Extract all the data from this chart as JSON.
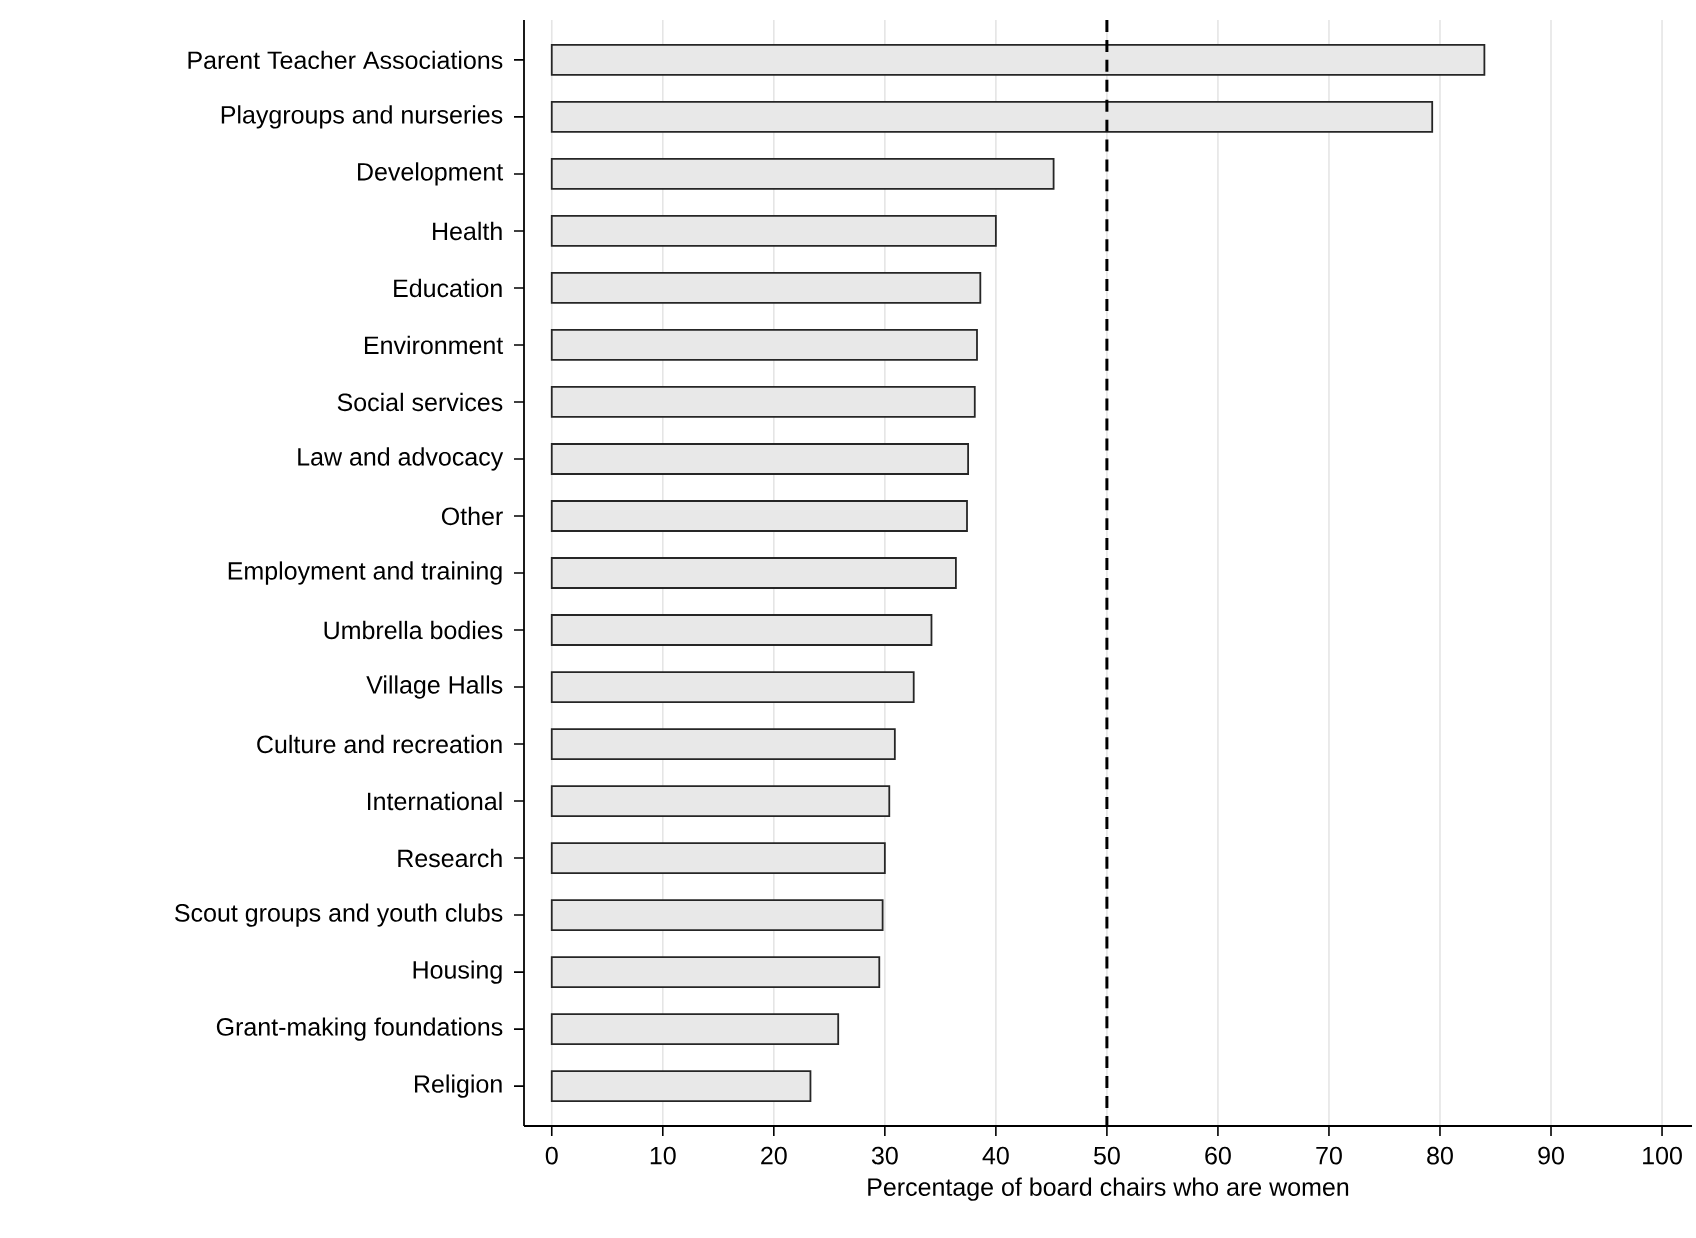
{
  "chart_data": {
    "type": "bar",
    "orientation": "horizontal",
    "categories": [
      "Parent Teacher Associations",
      "Playgroups and nurseries",
      "Development",
      "Health",
      "Education",
      "Environment",
      "Social services",
      "Law and advocacy",
      "Other",
      "Employment and training",
      "Umbrella bodies",
      "Village Halls",
      "Culture and recreation",
      "International",
      "Research",
      "Scout groups and youth clubs",
      "Housing",
      "Grant-making foundations",
      "Religion"
    ],
    "values": [
      84.0,
      79.3,
      45.2,
      40.0,
      38.6,
      38.3,
      38.1,
      37.5,
      37.4,
      36.4,
      34.2,
      32.6,
      30.9,
      30.4,
      30.0,
      29.8,
      29.5,
      25.8,
      23.3
    ],
    "color": "#e8e8e8",
    "xlabel": "Percentage of board chairs who are women",
    "xlim": [
      -2.5,
      102.7
    ],
    "xticks": [
      0,
      10,
      20,
      30,
      40,
      50,
      60,
      70,
      80,
      90,
      100
    ],
    "grid": "x",
    "ref_lines": [
      {
        "axis": "x",
        "value": 50,
        "line_style": "dashed",
        "color": "#000000"
      }
    ]
  }
}
